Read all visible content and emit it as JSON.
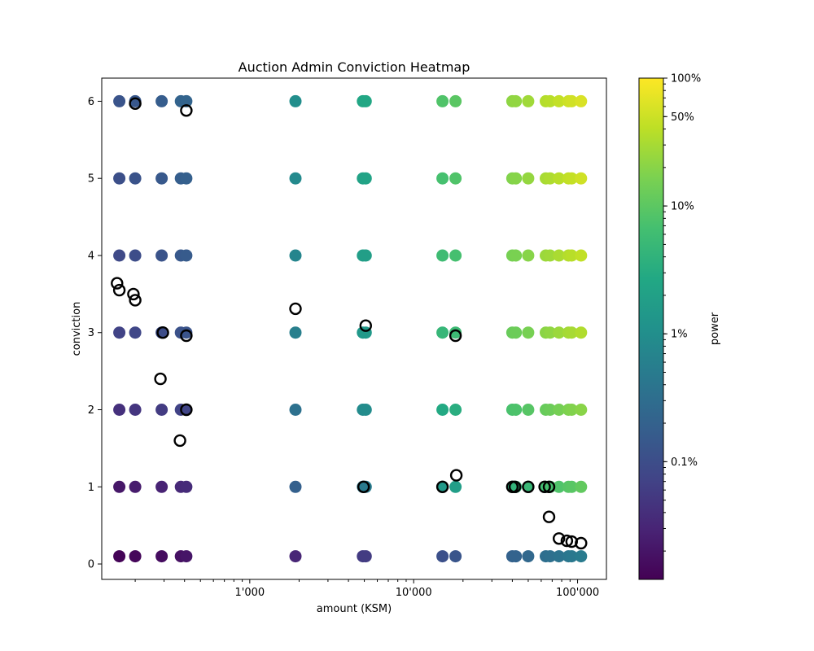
{
  "chart_data": {
    "type": "scatter",
    "title": "Auction Admin Conviction Heatmap",
    "xlabel": "amount (KSM)",
    "ylabel": "conviction",
    "xscale": "log",
    "xlim": [
      125,
      150000
    ],
    "ylim": [
      -0.2,
      6.3
    ],
    "x_ticks": [
      {
        "value": 1000,
        "label": "1'000"
      },
      {
        "value": 10000,
        "label": "10'000"
      },
      {
        "value": 100000,
        "label": "100'000"
      }
    ],
    "y_ticks": [
      {
        "value": 0,
        "label": "0"
      },
      {
        "value": 1,
        "label": "1"
      },
      {
        "value": 2,
        "label": "2"
      },
      {
        "value": 3,
        "label": "3"
      },
      {
        "value": 4,
        "label": "4"
      },
      {
        "value": 5,
        "label": "5"
      },
      {
        "value": 6,
        "label": "6"
      }
    ],
    "grid": false,
    "colorbar": {
      "label": "power",
      "scale": "log",
      "colormap": "viridis",
      "min": 0.00012,
      "max": 1.0,
      "ticks": [
        {
          "value": 1.0,
          "label": "100%"
        },
        {
          "value": 0.5,
          "label": "50%"
        },
        {
          "value": 0.1,
          "label": "10%"
        },
        {
          "value": 0.01,
          "label": "1%"
        },
        {
          "value": 0.001,
          "label": "0.1%"
        }
      ]
    },
    "series": [
      {
        "marker": "filled-circle",
        "amounts": [
          160,
          200,
          290,
          380,
          410,
          1900,
          4900,
          5100,
          15000,
          18000,
          40000,
          42000,
          50000,
          64000,
          68000,
          77000,
          88000,
          92000,
          105000
        ],
        "convictions": [
          0.1,
          1,
          2,
          3,
          4,
          5,
          6
        ],
        "powers": [
          [
            0.00013,
            0.00014,
            0.00016,
            0.00018,
            0.0002,
            0.00031,
            0.00056,
            0.00058,
            0.0011,
            0.0013,
            0.002,
            0.0021,
            0.0025,
            0.0031,
            0.0033,
            0.0037,
            0.0042,
            0.0044,
            0.005
          ],
          [
            0.00021,
            0.00024,
            0.00029,
            0.00034,
            0.00036,
            0.0019,
            0.0048,
            0.005,
            0.015,
            0.018,
            0.04,
            0.042,
            0.05,
            0.065,
            0.07,
            0.08,
            0.09,
            0.095,
            0.11
          ],
          [
            0.00042,
            0.00048,
            0.00058,
            0.0007,
            0.00075,
            0.0034,
            0.0087,
            0.009,
            0.028,
            0.033,
            0.073,
            0.077,
            0.092,
            0.119,
            0.13,
            0.15,
            0.17,
            0.18,
            0.2
          ],
          [
            0.00071,
            0.00081,
            0.00098,
            0.00118,
            0.00125,
            0.0057,
            0.0145,
            0.015,
            0.047,
            0.055,
            0.124,
            0.131,
            0.157,
            0.205,
            0.22,
            0.255,
            0.29,
            0.3,
            0.34
          ],
          [
            0.00088,
            0.001,
            0.00121,
            0.00146,
            0.00155,
            0.0071,
            0.018,
            0.0186,
            0.058,
            0.068,
            0.154,
            0.162,
            0.195,
            0.255,
            0.27,
            0.315,
            0.36,
            0.38,
            0.43
          ],
          [
            0.00106,
            0.0012,
            0.00145,
            0.00175,
            0.00186,
            0.0085,
            0.0216,
            0.0224,
            0.069,
            0.082,
            0.184,
            0.194,
            0.234,
            0.305,
            0.33,
            0.38,
            0.43,
            0.45,
            0.52
          ],
          [
            0.00124,
            0.0014,
            0.0017,
            0.00205,
            0.00217,
            0.0099,
            0.0252,
            0.026,
            0.081,
            0.096,
            0.215,
            0.227,
            0.273,
            0.355,
            0.38,
            0.44,
            0.5,
            0.53,
            0.6
          ]
        ]
      },
      {
        "marker": "open-circle",
        "points": [
          {
            "x": 200,
            "y": 5.97
          },
          {
            "x": 410,
            "y": 5.88
          },
          {
            "x": 155,
            "y": 3.64
          },
          {
            "x": 160,
            "y": 3.55
          },
          {
            "x": 195,
            "y": 3.5
          },
          {
            "x": 200,
            "y": 3.42
          },
          {
            "x": 1900,
            "y": 3.31
          },
          {
            "x": 5100,
            "y": 3.09
          },
          {
            "x": 295,
            "y": 3.0
          },
          {
            "x": 410,
            "y": 2.96
          },
          {
            "x": 18000,
            "y": 2.96
          },
          {
            "x": 285,
            "y": 2.4
          },
          {
            "x": 410,
            "y": 2.0
          },
          {
            "x": 375,
            "y": 1.6
          },
          {
            "x": 18200,
            "y": 1.15
          },
          {
            "x": 4950,
            "y": 1.0
          },
          {
            "x": 15000,
            "y": 1.0
          },
          {
            "x": 40000,
            "y": 1.0
          },
          {
            "x": 41500,
            "y": 1.0
          },
          {
            "x": 50000,
            "y": 1.0
          },
          {
            "x": 63000,
            "y": 1.0
          },
          {
            "x": 67000,
            "y": 1.0
          },
          {
            "x": 67000,
            "y": 0.61
          },
          {
            "x": 77000,
            "y": 0.33
          },
          {
            "x": 86000,
            "y": 0.3
          },
          {
            "x": 92000,
            "y": 0.29
          },
          {
            "x": 105000,
            "y": 0.27
          }
        ]
      }
    ]
  }
}
